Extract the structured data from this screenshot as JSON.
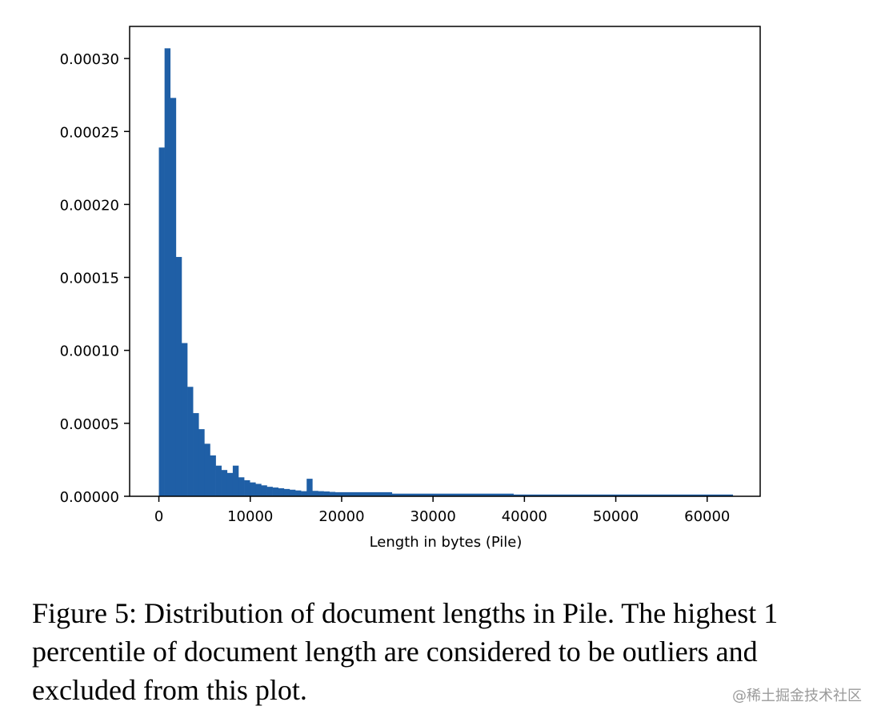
{
  "chart_data": {
    "type": "bar",
    "xlabel": "Length in bytes (Pile)",
    "ylabel": "",
    "title": "",
    "xlim": [
      -3200,
      65800
    ],
    "ylim": [
      0,
      0.000322
    ],
    "x_ticks": [
      0,
      10000,
      20000,
      30000,
      40000,
      50000,
      60000
    ],
    "x_tick_labels": [
      "0",
      "10000",
      "20000",
      "30000",
      "40000",
      "50000",
      "60000"
    ],
    "y_ticks": [
      0,
      5e-05,
      0.0001,
      0.00015,
      0.0002,
      0.00025,
      0.0003
    ],
    "y_tick_labels": [
      "0.00000",
      "0.00005",
      "0.00010",
      "0.00015",
      "0.00020",
      "0.00025",
      "0.00030"
    ],
    "bin_edges": [
      0,
      622,
      1244,
      1866,
      2488,
      3110,
      3732,
      4354,
      4976,
      5598,
      6220,
      6842,
      7464,
      8086,
      8708,
      9330,
      9952,
      10574,
      11196,
      11818,
      12440,
      13062,
      13684,
      14306,
      14928,
      15550,
      16172,
      16794,
      17416,
      18038,
      18660,
      19282,
      25500,
      38800,
      62800
    ],
    "values": [
      0.000239,
      0.000307,
      0.000273,
      0.000164,
      0.000105,
      7.5e-05,
      5.7e-05,
      4.6e-05,
      3.6e-05,
      2.8e-05,
      2.1e-05,
      1.8e-05,
      1.6e-05,
      2.1e-05,
      1.3e-05,
      1.1e-05,
      9.5e-06,
      8.5e-06,
      7.5e-06,
      6.5e-06,
      6e-06,
      5.5e-06,
      5e-06,
      4.5e-06,
      4e-06,
      3.5e-06,
      1.2e-05,
      3.7e-06,
      3.5e-06,
      3.3e-06,
      3e-06,
      2.8e-06,
      1.8e-06,
      1.2e-06
    ],
    "bar_color": "#1f5fa6",
    "grid": false,
    "legend": "none"
  },
  "caption": {
    "text": "Figure 5: Distribution of document lengths in Pile. The highest 1 percentile of document length are considered to be outliers and excluded from this plot."
  },
  "watermark": {
    "text": "@稀土掘金技术社区"
  }
}
